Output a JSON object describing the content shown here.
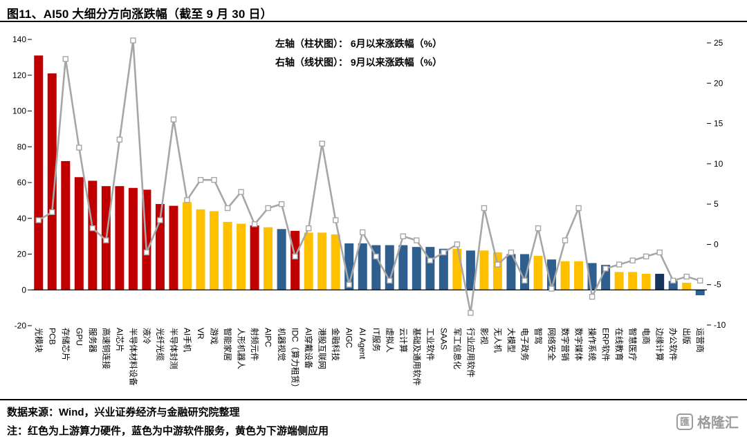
{
  "header": {
    "title": "图11、AI50 大细分方向涨跌幅（截至 9 月 30 日）"
  },
  "legend": {
    "line1": "左轴（柱状图）： 6月以来涨跌幅（%）",
    "line2": "右轴（线状图）： 9月以来涨跌幅（%）"
  },
  "chart_data": {
    "type": "combo-bar-line",
    "title": "AI50 大细分方向涨跌幅（截至 9 月 30 日）",
    "categories": [
      "光模块",
      "PCB",
      "存储芯片",
      "GPU",
      "服务器",
      "高速铜连接",
      "AI芯片",
      "半导体材料设备",
      "液冷",
      "光纤光缆",
      "半导体封测",
      "AI手机",
      "VR",
      "游戏",
      "智能家居",
      "人形机器人",
      "射频元件",
      "AIPC",
      "机器视觉",
      "IDC（算力租赁）",
      "AI穿戴设备",
      "港股互联网",
      "金融科技",
      "AIGC",
      "AI Agent",
      "IT服务",
      "虚拟人",
      "云计算",
      "基础及通用软件",
      "工业软件",
      "SAAS",
      "军工信息化",
      "行业应用软件",
      "影视",
      "无人机",
      "大模型",
      "电子政务",
      "智驾",
      "网络安全",
      "数字营销",
      "数字媒体",
      "操作系统",
      "ERP软件",
      "在线教育",
      "智慧医疗",
      "电商",
      "边缘计算",
      "办公软件",
      "出版",
      "运营商"
    ],
    "series": [
      {
        "name": "6月以来涨跌幅（%）",
        "type": "bar",
        "axis": "left",
        "values": [
          131,
          121,
          72,
          63,
          61,
          58,
          58,
          57,
          56,
          48,
          47,
          49,
          45,
          44,
          38,
          37,
          36,
          35,
          34,
          33,
          32,
          32,
          31,
          26,
          26,
          25,
          25,
          25,
          24,
          24,
          23,
          23,
          22,
          22,
          21,
          20,
          20,
          19,
          17,
          16,
          16,
          15,
          14,
          10,
          10,
          9,
          9,
          5,
          4,
          -3
        ],
        "colors": [
          "red",
          "red",
          "red",
          "red",
          "red",
          "red",
          "red",
          "red",
          "red",
          "red",
          "red",
          "yellow",
          "yellow",
          "yellow",
          "yellow",
          "yellow",
          "red",
          "yellow",
          "blue",
          "red",
          "yellow",
          "yellow",
          "yellow",
          "blue",
          "blue",
          "blue",
          "blue",
          "blue",
          "blue",
          "blue",
          "blue",
          "yellow",
          "blue",
          "yellow",
          "yellow",
          "blue",
          "blue",
          "yellow",
          "blue",
          "yellow",
          "yellow",
          "blue",
          "blue",
          "yellow",
          "yellow",
          "yellow",
          "navy",
          "blue",
          "yellow",
          "blue"
        ]
      },
      {
        "name": "9月以来涨跌幅（%）",
        "type": "line",
        "axis": "right",
        "values": [
          3,
          4,
          23,
          12,
          2,
          0.5,
          13,
          25.3,
          -1,
          3,
          15.5,
          5.5,
          8,
          8,
          4.5,
          6.5,
          2.5,
          4.5,
          5,
          -1.5,
          2,
          12.5,
          3,
          -5,
          1.5,
          -1.5,
          -4.5,
          1,
          0.5,
          -2,
          -1,
          0,
          -8.5,
          4.5,
          -2.5,
          -1,
          -4.5,
          2,
          -5.5,
          0.5,
          4.5,
          -6.5,
          -3,
          -2.5,
          -2,
          -1.5,
          -1,
          -4.5,
          -4,
          -4.5
        ]
      }
    ],
    "left_axis": {
      "min": -20,
      "max": 140,
      "ticks": [
        140,
        120,
        100,
        80,
        60,
        40,
        20,
        0,
        -20
      ]
    },
    "right_axis": {
      "min": -10,
      "max": 25,
      "ticks": [
        25,
        20,
        15,
        10,
        5,
        0,
        -5,
        -10
      ]
    },
    "colors": {
      "red": "#C00000",
      "yellow": "#FFC000",
      "blue": "#2E5F8F",
      "navy": "#17365D",
      "line": "#A6A6A6",
      "axis": "#000000"
    },
    "color_legend": {
      "red": "上游算力硬件",
      "blue": "中游软件服务",
      "yellow": "下游端侧应用"
    },
    "grid": false,
    "legend_position": "top-center"
  },
  "footer": {
    "source": "数据来源：Wind，兴业证券经济与金融研究院整理",
    "note": "注：红色为上游算力硬件，蓝色为中游软件服务，黄色为下游端侧应用",
    "logo_icon": "匯",
    "logo_text": "格隆汇"
  }
}
